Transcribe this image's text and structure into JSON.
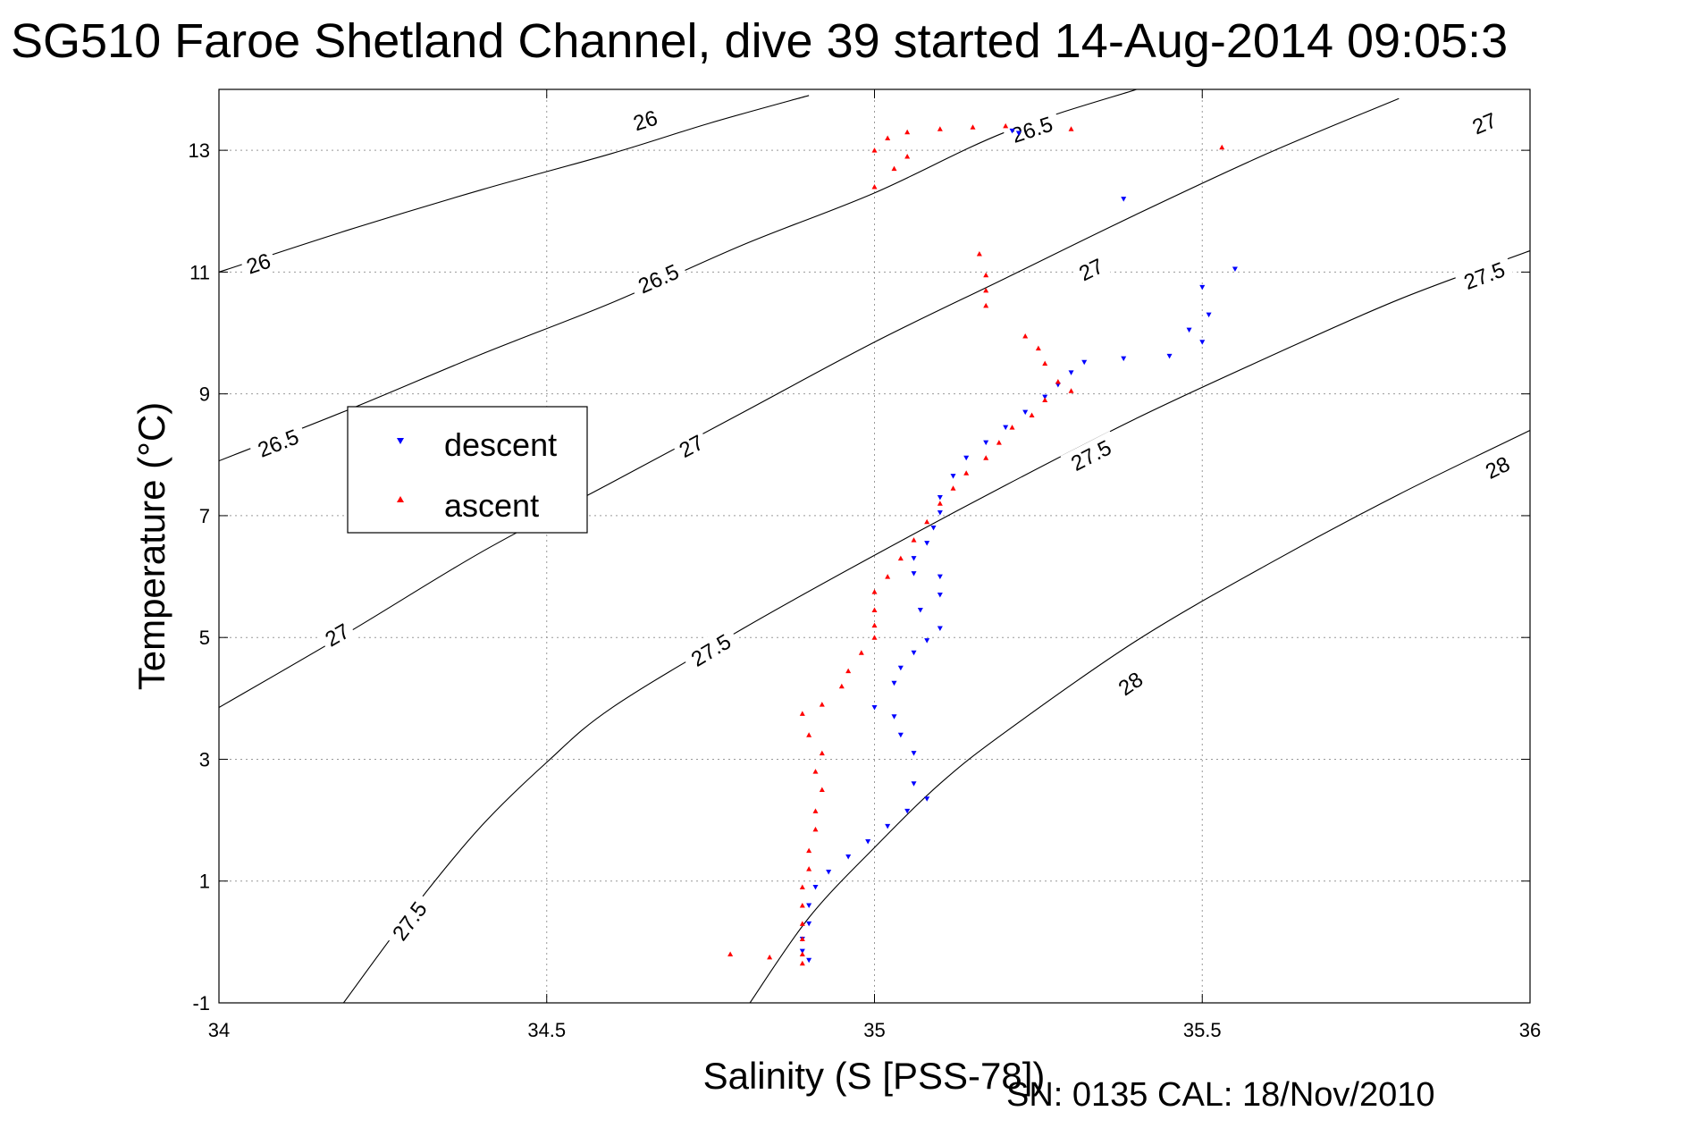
{
  "chart_data": {
    "type": "scatter",
    "title": "SG510 Faroe Shetland Channel, dive 39 started 14-Aug-2014 09:05:3",
    "xlabel": "Salinity (S [PSS-78])",
    "ylabel": "Temperature (°C)",
    "xlim": [
      34,
      36
    ],
    "ylim": [
      -1,
      14
    ],
    "xticks": [
      34,
      34.5,
      35,
      35.5,
      36
    ],
    "xtick_labels": [
      "34",
      "34.5",
      "35",
      "35.5",
      "36"
    ],
    "yticks": [
      -1,
      1,
      3,
      5,
      7,
      9,
      11,
      13
    ],
    "ytick_labels": [
      "-1",
      "1",
      "3",
      "5",
      "7",
      "9",
      "11",
      "13"
    ],
    "grid": true,
    "legend_position": "upper-left",
    "annotation": "SN: 0135  CAL: 18/Nov/2010",
    "density_contours": [
      {
        "sigma": 26,
        "label": "26",
        "label_positions": [
          [
            34.06,
            11.15
          ],
          [
            34.65,
            13.5
          ]
        ],
        "points": [
          [
            34.0,
            11.0
          ],
          [
            34.2,
            11.7
          ],
          [
            34.4,
            12.35
          ],
          [
            34.6,
            12.95
          ],
          [
            34.75,
            13.45
          ],
          [
            34.9,
            13.9
          ]
        ]
      },
      {
        "sigma": 26.5,
        "label": "26.5",
        "label_positions": [
          [
            34.09,
            8.2
          ],
          [
            34.67,
            10.9
          ],
          [
            35.24,
            13.35
          ]
        ],
        "points": [
          [
            34.0,
            7.9
          ],
          [
            34.2,
            8.75
          ],
          [
            34.4,
            9.65
          ],
          [
            34.6,
            10.5
          ],
          [
            34.8,
            11.45
          ],
          [
            35.0,
            12.3
          ],
          [
            35.2,
            13.3
          ],
          [
            35.4,
            14.0
          ]
        ]
      },
      {
        "sigma": 27,
        "label": "27",
        "label_positions": [
          [
            34.18,
            5.05
          ],
          [
            34.72,
            8.15
          ],
          [
            35.33,
            11.05
          ],
          [
            35.93,
            13.45
          ]
        ],
        "points": [
          [
            34.0,
            3.85
          ],
          [
            34.2,
            5.1
          ],
          [
            34.4,
            6.4
          ],
          [
            34.6,
            7.55
          ],
          [
            34.8,
            8.7
          ],
          [
            35.0,
            9.85
          ],
          [
            35.2,
            10.9
          ],
          [
            35.4,
            11.95
          ],
          [
            35.6,
            12.95
          ],
          [
            35.8,
            13.85
          ]
        ]
      },
      {
        "sigma": 27.5,
        "label": "27.5",
        "label_positions": [
          [
            34.29,
            0.35
          ],
          [
            34.75,
            4.8
          ],
          [
            35.33,
            8.0
          ],
          [
            35.93,
            10.95
          ]
        ],
        "points": [
          [
            34.19,
            -1.0
          ],
          [
            34.3,
            0.6
          ],
          [
            34.4,
            1.9
          ],
          [
            34.5,
            2.95
          ],
          [
            34.6,
            3.85
          ],
          [
            34.8,
            5.15
          ],
          [
            35.0,
            6.35
          ],
          [
            35.2,
            7.5
          ],
          [
            35.4,
            8.6
          ],
          [
            35.6,
            9.6
          ],
          [
            35.8,
            10.55
          ],
          [
            36.0,
            11.35
          ]
        ]
      },
      {
        "sigma": 28,
        "label": "28",
        "label_positions": [
          [
            35.39,
            4.25
          ],
          [
            35.95,
            7.8
          ]
        ],
        "points": [
          [
            34.81,
            -1.0
          ],
          [
            34.9,
            0.4
          ],
          [
            35.0,
            1.55
          ],
          [
            35.1,
            2.6
          ],
          [
            35.2,
            3.45
          ],
          [
            35.4,
            4.95
          ],
          [
            35.6,
            6.2
          ],
          [
            35.8,
            7.35
          ],
          [
            36.0,
            8.4
          ]
        ]
      }
    ],
    "series": [
      {
        "name": "descent",
        "color": "#0000ff",
        "marker": "triangle-down",
        "points": [
          [
            35.21,
            13.32
          ],
          [
            35.22,
            13.28
          ],
          [
            35.38,
            12.2
          ],
          [
            35.55,
            11.05
          ],
          [
            35.5,
            10.75
          ],
          [
            35.51,
            10.3
          ],
          [
            35.48,
            10.05
          ],
          [
            35.5,
            9.85
          ],
          [
            35.45,
            9.62
          ],
          [
            35.38,
            9.58
          ],
          [
            35.32,
            9.52
          ],
          [
            35.3,
            9.35
          ],
          [
            35.28,
            9.15
          ],
          [
            35.26,
            8.95
          ],
          [
            35.23,
            8.7
          ],
          [
            35.2,
            8.45
          ],
          [
            35.17,
            8.2
          ],
          [
            35.14,
            7.95
          ],
          [
            35.12,
            7.65
          ],
          [
            35.1,
            7.3
          ],
          [
            35.1,
            7.05
          ],
          [
            35.09,
            6.8
          ],
          [
            35.08,
            6.55
          ],
          [
            35.06,
            6.3
          ],
          [
            35.06,
            6.05
          ],
          [
            35.1,
            6.0
          ],
          [
            35.1,
            5.7
          ],
          [
            35.07,
            5.45
          ],
          [
            35.1,
            5.15
          ],
          [
            35.08,
            4.95
          ],
          [
            35.06,
            4.75
          ],
          [
            35.04,
            4.5
          ],
          [
            35.03,
            4.25
          ],
          [
            35.0,
            3.85
          ],
          [
            35.03,
            3.7
          ],
          [
            35.04,
            3.4
          ],
          [
            35.06,
            3.1
          ],
          [
            35.06,
            2.6
          ],
          [
            35.08,
            2.35
          ],
          [
            35.05,
            2.15
          ],
          [
            35.02,
            1.9
          ],
          [
            34.99,
            1.65
          ],
          [
            34.96,
            1.4
          ],
          [
            34.93,
            1.15
          ],
          [
            34.91,
            0.9
          ],
          [
            34.9,
            0.6
          ],
          [
            34.9,
            0.3
          ],
          [
            34.89,
            0.05
          ],
          [
            34.89,
            -0.15
          ],
          [
            34.9,
            -0.3
          ]
        ]
      },
      {
        "name": "ascent",
        "color": "#ff0000",
        "marker": "triangle-up",
        "points": [
          [
            35.2,
            13.4
          ],
          [
            35.15,
            13.38
          ],
          [
            35.1,
            13.35
          ],
          [
            35.05,
            13.3
          ],
          [
            35.02,
            13.2
          ],
          [
            35.0,
            13.0
          ],
          [
            35.05,
            12.9
          ],
          [
            35.03,
            12.7
          ],
          [
            35.0,
            12.4
          ],
          [
            35.16,
            11.3
          ],
          [
            35.17,
            10.95
          ],
          [
            35.17,
            10.7
          ],
          [
            35.17,
            10.45
          ],
          [
            35.23,
            9.95
          ],
          [
            35.25,
            9.75
          ],
          [
            35.26,
            9.5
          ],
          [
            35.28,
            9.2
          ],
          [
            35.3,
            9.05
          ],
          [
            35.26,
            8.9
          ],
          [
            35.24,
            8.65
          ],
          [
            35.21,
            8.45
          ],
          [
            35.19,
            8.2
          ],
          [
            35.17,
            7.95
          ],
          [
            35.14,
            7.7
          ],
          [
            35.12,
            7.45
          ],
          [
            35.1,
            7.2
          ],
          [
            35.08,
            6.9
          ],
          [
            35.06,
            6.6
          ],
          [
            35.04,
            6.3
          ],
          [
            35.02,
            6.0
          ],
          [
            35.0,
            5.75
          ],
          [
            35.0,
            5.45
          ],
          [
            35.0,
            5.2
          ],
          [
            35.0,
            5.0
          ],
          [
            34.98,
            4.75
          ],
          [
            34.96,
            4.45
          ],
          [
            34.95,
            4.2
          ],
          [
            34.92,
            3.9
          ],
          [
            34.89,
            3.75
          ],
          [
            34.9,
            3.4
          ],
          [
            34.92,
            3.1
          ],
          [
            34.91,
            2.8
          ],
          [
            34.92,
            2.5
          ],
          [
            34.91,
            2.15
          ],
          [
            34.91,
            1.85
          ],
          [
            34.9,
            1.5
          ],
          [
            34.9,
            1.2
          ],
          [
            34.89,
            0.9
          ],
          [
            34.89,
            0.6
          ],
          [
            34.89,
            0.3
          ],
          [
            34.89,
            0.05
          ],
          [
            34.89,
            -0.2
          ],
          [
            34.89,
            -0.35
          ],
          [
            34.78,
            -0.2
          ],
          [
            34.84,
            -0.25
          ],
          [
            35.3,
            13.35
          ],
          [
            35.53,
            13.05
          ]
        ]
      }
    ]
  }
}
